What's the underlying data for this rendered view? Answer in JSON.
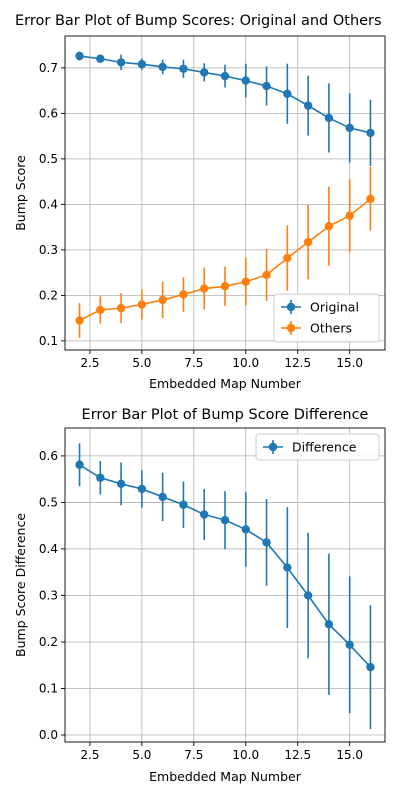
{
  "chart_data": [
    {
      "type": "line",
      "title": "Error Bar Plot of Bump Scores: Original and Others",
      "xlabel": "Embedded Map Number",
      "ylabel": "Bump Score",
      "xlim": [
        1.3,
        16.7
      ],
      "ylim": [
        0.08,
        0.77
      ],
      "xticks": [
        2.5,
        5.0,
        7.5,
        10.0,
        12.5,
        15.0
      ],
      "xtick_labels": [
        "2.5",
        "5.0",
        "7.5",
        "10.0",
        "12.5",
        "15.0"
      ],
      "yticks": [
        0.1,
        0.2,
        0.3,
        0.4,
        0.5,
        0.6,
        0.7
      ],
      "ytick_labels": [
        "0.1",
        "0.2",
        "0.3",
        "0.4",
        "0.5",
        "0.6",
        "0.7"
      ],
      "grid": true,
      "legend_position": "bottom-right",
      "x": [
        2,
        3,
        4,
        5,
        6,
        7,
        8,
        9,
        10,
        11,
        12,
        13,
        14,
        15,
        16
      ],
      "series": [
        {
          "name": "Original",
          "color": "#1f77b4",
          "values": [
            0.726,
            0.72,
            0.712,
            0.708,
            0.702,
            0.698,
            0.69,
            0.682,
            0.672,
            0.66,
            0.643,
            0.617,
            0.59,
            0.568,
            0.557
          ],
          "errors": [
            0.01,
            0.008,
            0.017,
            0.013,
            0.016,
            0.02,
            0.02,
            0.025,
            0.037,
            0.043,
            0.066,
            0.066,
            0.076,
            0.076,
            0.073
          ]
        },
        {
          "name": "Others",
          "color": "#ff7f0e",
          "values": [
            0.145,
            0.168,
            0.172,
            0.18,
            0.19,
            0.202,
            0.215,
            0.22,
            0.23,
            0.245,
            0.282,
            0.317,
            0.352,
            0.375,
            0.412
          ],
          "errors": [
            0.038,
            0.03,
            0.033,
            0.033,
            0.04,
            0.038,
            0.046,
            0.043,
            0.053,
            0.057,
            0.072,
            0.082,
            0.087,
            0.08,
            0.07
          ]
        }
      ]
    },
    {
      "type": "line",
      "title": "Error Bar Plot of Bump Score Difference",
      "xlabel": "Embedded Map Number",
      "ylabel": "Bump Score Difference",
      "xlim": [
        1.3,
        16.7
      ],
      "ylim": [
        -0.015,
        0.66
      ],
      "xticks": [
        2.5,
        5.0,
        7.5,
        10.0,
        12.5,
        15.0
      ],
      "xtick_labels": [
        "2.5",
        "5.0",
        "7.5",
        "10.0",
        "12.5",
        "15.0"
      ],
      "yticks": [
        0.0,
        0.1,
        0.2,
        0.3,
        0.4,
        0.5,
        0.6
      ],
      "ytick_labels": [
        "0.0",
        "0.1",
        "0.2",
        "0.3",
        "0.4",
        "0.5",
        "0.6"
      ],
      "grid": true,
      "legend_position": "top-right",
      "x": [
        2,
        3,
        4,
        5,
        6,
        7,
        8,
        9,
        10,
        11,
        12,
        13,
        14,
        15,
        16
      ],
      "series": [
        {
          "name": "Difference",
          "color": "#1f77b4",
          "values": [
            0.581,
            0.553,
            0.54,
            0.529,
            0.512,
            0.495,
            0.474,
            0.462,
            0.442,
            0.414,
            0.36,
            0.3,
            0.238,
            0.194,
            0.146
          ],
          "errors": [
            0.046,
            0.036,
            0.046,
            0.04,
            0.052,
            0.05,
            0.055,
            0.062,
            0.08,
            0.093,
            0.13,
            0.135,
            0.152,
            0.147,
            0.133
          ]
        }
      ]
    }
  ]
}
